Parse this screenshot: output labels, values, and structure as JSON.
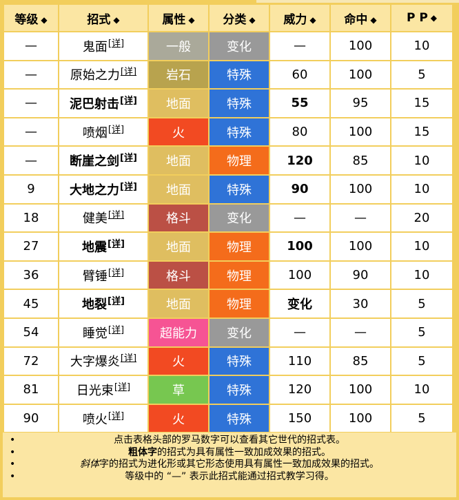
{
  "headers": [
    {
      "label": "等级"
    },
    {
      "label": "招式"
    },
    {
      "label": "属性"
    },
    {
      "label": "分类"
    },
    {
      "label": "威力"
    },
    {
      "label": "命中"
    },
    {
      "label": "P P"
    }
  ],
  "sort_icon": "◆",
  "detail_link": "[详]",
  "rows": [
    {
      "level": "—",
      "move": "鬼面",
      "bold": false,
      "type": "一般",
      "type_class": "t-normal",
      "category": "变化",
      "cat_class": "c-status",
      "power": "—",
      "power_bold": false,
      "accuracy": "100",
      "pp": "10"
    },
    {
      "level": "—",
      "move": "原始之力",
      "bold": false,
      "type": "岩石",
      "type_class": "t-rock",
      "category": "特殊",
      "cat_class": "c-special",
      "power": "60",
      "power_bold": false,
      "accuracy": "100",
      "pp": "5"
    },
    {
      "level": "—",
      "move": "泥巴射击",
      "bold": true,
      "type": "地面",
      "type_class": "t-ground",
      "category": "特殊",
      "cat_class": "c-special",
      "power": "55",
      "power_bold": true,
      "accuracy": "95",
      "pp": "15"
    },
    {
      "level": "—",
      "move": "喷烟",
      "bold": false,
      "type": "火",
      "type_class": "t-fire",
      "category": "特殊",
      "cat_class": "c-special",
      "power": "80",
      "power_bold": false,
      "accuracy": "100",
      "pp": "15"
    },
    {
      "level": "—",
      "move": "断崖之剑",
      "bold": true,
      "type": "地面",
      "type_class": "t-ground",
      "category": "物理",
      "cat_class": "c-physical",
      "power": "120",
      "power_bold": true,
      "accuracy": "85",
      "pp": "10"
    },
    {
      "level": "9",
      "move": "大地之力",
      "bold": true,
      "type": "地面",
      "type_class": "t-ground",
      "category": "特殊",
      "cat_class": "c-special",
      "power": "90",
      "power_bold": true,
      "accuracy": "100",
      "pp": "10"
    },
    {
      "level": "18",
      "move": "健美",
      "bold": false,
      "type": "格斗",
      "type_class": "t-fighting",
      "category": "变化",
      "cat_class": "c-status",
      "power": "—",
      "power_bold": false,
      "accuracy": "—",
      "pp": "20"
    },
    {
      "level": "27",
      "move": "地震",
      "bold": true,
      "type": "地面",
      "type_class": "t-ground",
      "category": "物理",
      "cat_class": "c-physical",
      "power": "100",
      "power_bold": true,
      "accuracy": "100",
      "pp": "10"
    },
    {
      "level": "36",
      "move": "臂锤",
      "bold": false,
      "type": "格斗",
      "type_class": "t-fighting",
      "category": "物理",
      "cat_class": "c-physical",
      "power": "100",
      "power_bold": false,
      "accuracy": "90",
      "pp": "10"
    },
    {
      "level": "45",
      "move": "地裂",
      "bold": true,
      "type": "地面",
      "type_class": "t-ground",
      "category": "物理",
      "cat_class": "c-physical",
      "power": "变化",
      "power_bold": true,
      "accuracy": "30",
      "pp": "5"
    },
    {
      "level": "54",
      "move": "睡觉",
      "bold": false,
      "type": "超能力",
      "type_class": "t-psychic",
      "category": "变化",
      "cat_class": "c-status",
      "power": "—",
      "power_bold": false,
      "accuracy": "—",
      "pp": "5"
    },
    {
      "level": "72",
      "move": "大字爆炎",
      "bold": false,
      "type": "火",
      "type_class": "t-fire",
      "category": "特殊",
      "cat_class": "c-special",
      "power": "110",
      "power_bold": false,
      "accuracy": "85",
      "pp": "5"
    },
    {
      "level": "81",
      "move": "日光束",
      "bold": false,
      "type": "草",
      "type_class": "t-grass",
      "category": "特殊",
      "cat_class": "c-special",
      "power": "120",
      "power_bold": false,
      "accuracy": "100",
      "pp": "10"
    },
    {
      "level": "90",
      "move": "喷火",
      "bold": false,
      "type": "火",
      "type_class": "t-fire",
      "category": "特殊",
      "cat_class": "c-special",
      "power": "150",
      "power_bold": false,
      "accuracy": "100",
      "pp": "5"
    }
  ],
  "notes": {
    "line1": "点击表格头部的罗马数字可以查看其它世代的招式表。",
    "line2_bold": "粗体字",
    "line2_rest": "的招式为具有属性一致加成效果的招式。",
    "line3_italic": "斜体",
    "line3_rest": "字的招式为进化形或其它形态使用具有属性一致加成效果的招式。",
    "line4": "等级中的 “—” 表示此招式能通过招式教学习得。"
  }
}
